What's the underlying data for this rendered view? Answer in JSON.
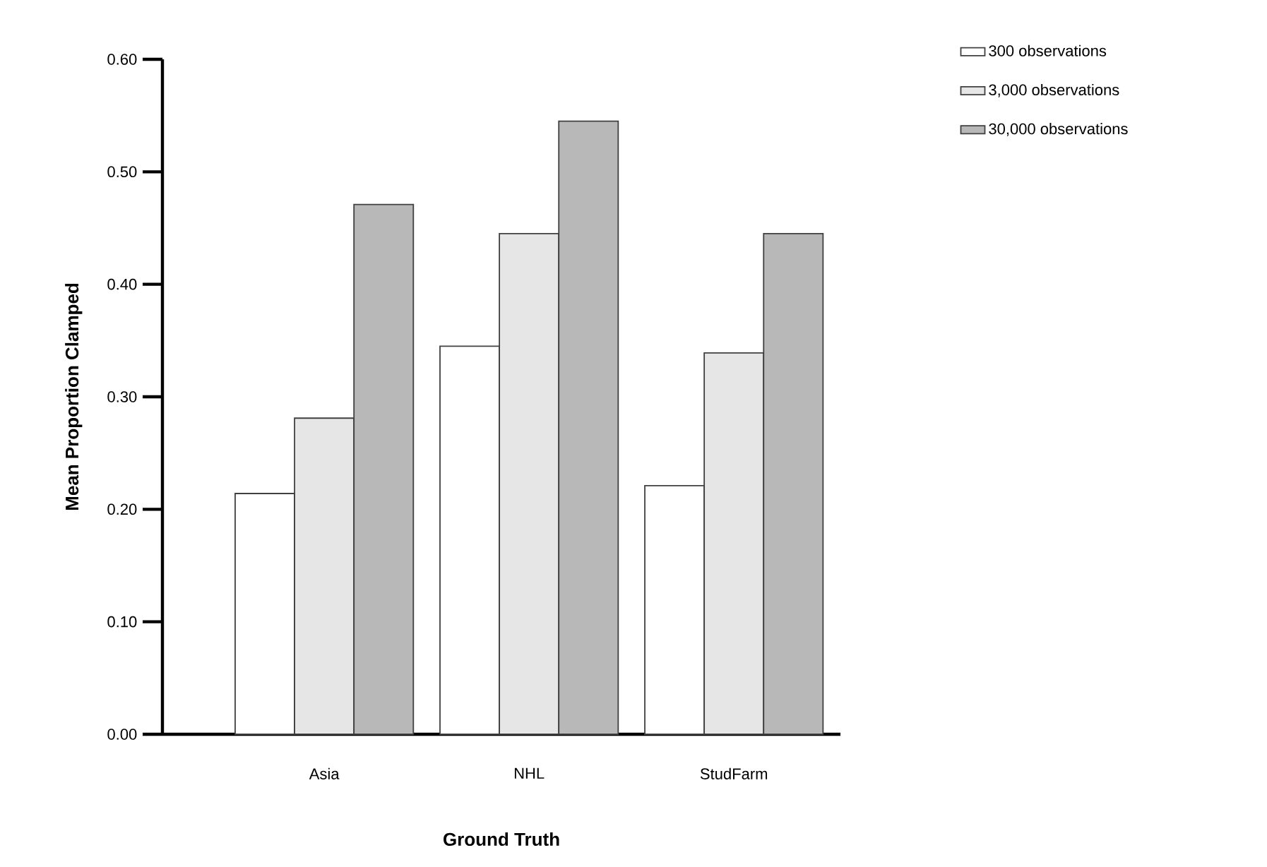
{
  "chart_data": {
    "type": "bar",
    "xlabel": "Ground Truth",
    "ylabel": "Mean Proportion Clamped",
    "categories": [
      "Asia",
      "NHL",
      "StudFarm"
    ],
    "series": [
      {
        "name": "300 observations",
        "color": "#ffffff",
        "values": [
          0.214,
          0.345,
          0.221
        ]
      },
      {
        "name": "3,000 observations",
        "color": "#e6e6e6",
        "values": [
          0.281,
          0.445,
          0.339
        ]
      },
      {
        "name": "30,000 observations",
        "color": "#b8b8b8",
        "values": [
          0.471,
          0.545,
          0.445
        ]
      }
    ],
    "ylim": [
      0,
      0.6
    ],
    "yticks": [
      {
        "value": 0,
        "label": "0.00"
      },
      {
        "value": 0.1,
        "label": "0.10"
      },
      {
        "value": 0.2,
        "label": "0.20"
      },
      {
        "value": 0.3,
        "label": "0.30"
      },
      {
        "value": 0.4,
        "label": "0.40"
      },
      {
        "value": 0.5,
        "label": "0.50"
      },
      {
        "value": 0.6,
        "label": "0.60"
      }
    ],
    "legend": "top right",
    "grid": false
  }
}
